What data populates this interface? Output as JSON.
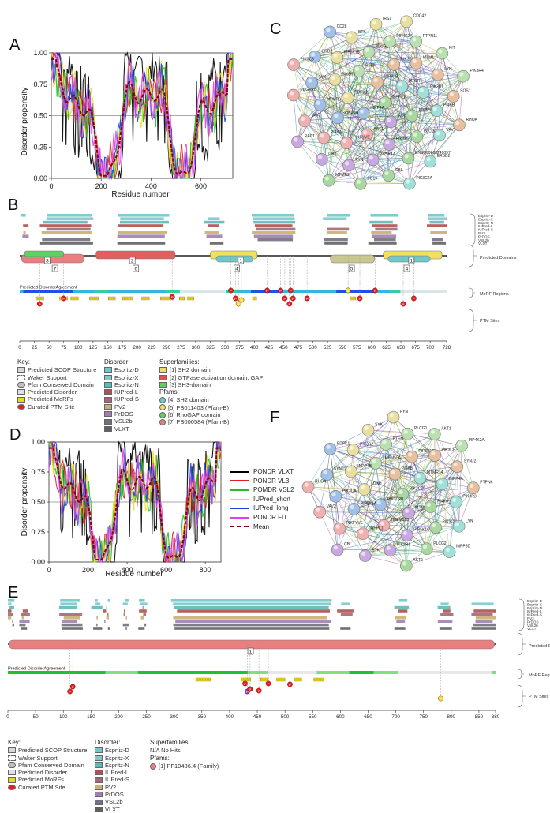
{
  "panels": {
    "a": "A",
    "b": "B",
    "c": "C",
    "d": "D",
    "e": "E",
    "f": "F"
  },
  "colors": {
    "vlxt": "#000000",
    "vl3": "#e02020",
    "vsl2": "#20c020",
    "iupred_short": "#e8e020",
    "iupred_long": "#2040e0",
    "fit": "#e040e0",
    "mean": "#8b0000",
    "sh2": "#66cccc",
    "gap": "#e05050",
    "sh3": "#60d060",
    "superfam": "#f0e060",
    "pfamB": "#c8c890"
  },
  "chart_a": {
    "ylabel": "Disorder propensity",
    "xlabel": "Residue number",
    "xticks": [
      "0",
      "200",
      "400",
      "600"
    ],
    "yticks": [
      "0.00",
      "0.25",
      "0.50",
      "0.75",
      "1.00"
    ],
    "xmax": 728
  },
  "chart_d": {
    "ylabel": "Disorder propensity",
    "xlabel": "Residue number",
    "xticks": [
      "0",
      "200",
      "400",
      "600",
      "800"
    ],
    "yticks": [
      "0.00",
      "0.25",
      "0.50",
      "0.75",
      "1.00"
    ],
    "xmax": 880
  },
  "legend_d": [
    {
      "label": "PONDR VLXT",
      "color": "#000000",
      "dash": false
    },
    {
      "label": "PONDR VL3",
      "color": "#e02020",
      "dash": false
    },
    {
      "label": "POMDR VSL2",
      "color": "#20c020",
      "dash": false
    },
    {
      "label": "IUPred_short",
      "color": "#e8e020",
      "dash": false
    },
    {
      "label": "IUPred_long",
      "color": "#2040e0",
      "dash": false
    },
    {
      "label": "PONDR FIT",
      "color": "#e040e0",
      "dash": false
    },
    {
      "label": "Mean",
      "color": "#8b0000",
      "dash": true
    }
  ],
  "track_b": {
    "predictors": [
      "Espritz-D",
      "Espritz-X",
      "Espritz-N",
      "IUPred-L",
      "IUPred-S",
      "PV2",
      "PrDOS",
      "VSL2b",
      "VLXT"
    ],
    "sections": {
      "domains": "Predicted Domains",
      "morf": "MoRF Regions",
      "ptm": "PTM Sites"
    },
    "agreement": "Predicted DisorderAgreement",
    "axis": [
      "0",
      "25",
      "50",
      "75",
      "100",
      "125",
      "150",
      "175",
      "200",
      "225",
      "250",
      "275",
      "300",
      "325",
      "350",
      "375",
      "400",
      "425",
      "450",
      "475",
      "500",
      "525",
      "550",
      "575",
      "600",
      "625",
      "650",
      "675",
      "700",
      "728"
    ],
    "domain_labels": [
      "3",
      "7",
      "2",
      "6",
      "4",
      "1",
      "5",
      "4",
      "1"
    ]
  },
  "track_e": {
    "predictors": [
      "Espritz-D",
      "Espritz-X",
      "Espritz-N",
      "IUPred-L",
      "IUPred-S",
      "PV2",
      "PrDOS",
      "VSL2b",
      "VLXT"
    ],
    "sections": {
      "domains": "Predicted Domains",
      "morf": "MoRF Regions",
      "ptm": "PTM Sites"
    },
    "agreement": "Predicted DisorderAgreement",
    "axis": [
      "0",
      "50",
      "100",
      "150",
      "200",
      "250",
      "300",
      "350",
      "400",
      "450",
      "500",
      "550",
      "600",
      "650",
      "700",
      "750",
      "800",
      "850",
      "880"
    ],
    "domain_labels": [
      "1"
    ]
  },
  "key_b": {
    "key_title": "Key:",
    "key_items": [
      "Predicted SCOP Structure",
      "Waker Support",
      "Pfam Conserved Domain",
      "Predicted Disorder",
      "Predicted MoRFs",
      "Curated PTM Site"
    ],
    "disorder_title": "Disorder:",
    "disorder_items": [
      "Esprtiz-D",
      "Espritz-X",
      "Espritz-N",
      "IUPred-L",
      "IUPred-S",
      "PV2",
      "PrDOS",
      "VSL2b",
      "VLXT"
    ],
    "superfam_title": "Superfamilies:",
    "superfam_items": [
      "[1] SH2 domain",
      "[2] GTPase activation domain, GAP",
      "[3] SH3-domain"
    ],
    "pfam_title": "Pfams:",
    "pfam_items": [
      "[4] SH2 domain",
      "[5] PB011403 (Pfam-B)",
      "[6] RhoGAP domain",
      "[7] PB000584 (Pfam-B)"
    ]
  },
  "key_e": {
    "key_title": "Key:",
    "key_items": [
      "Predicted SCOP Structure",
      "Waker Support",
      "Pfam Conserved Domain",
      "Predicted Disorder",
      "Predicted MoRFs",
      "Curated PTM Site"
    ],
    "disorder_title": "Disorder:",
    "disorder_items": [
      "Esprtiz-D",
      "Espritz-X",
      "Espritz-N",
      "IUPred-L",
      "IUPred-S",
      "PV2",
      "PrDOS",
      "VSL2b",
      "VLXT"
    ],
    "superfam_title": "Superfamilies:",
    "superfam_items": [
      "N/A No Hits"
    ],
    "pfam_title": "Pfams:",
    "pfam_items": [
      "[1] PF10486.4 (Family)"
    ]
  },
  "network_c": {
    "nodes": [
      "INPPL1",
      "INPP4A",
      "INPP4B",
      "INPP5D",
      "PDPK1",
      "MTOR",
      "AKT1",
      "PTEN",
      "PIK3CD",
      "PIK3CA",
      "PIK3CB",
      "PIK3R2",
      "PIK3R3",
      "PIK3R1",
      "PIKFYVE",
      "PLCG2",
      "PLCG1",
      "MTMR3",
      "MTM1",
      "PIP5K1A",
      "PIP5K1B",
      "PI4KB",
      "PI4KA",
      "PIP4K2A",
      "ENSG00000249097",
      "SYK",
      "LYN",
      "FYN",
      "BTK",
      "VAV1",
      "VAV2",
      "PTPN11",
      "CBL",
      "GRB2",
      "SOS1",
      "CRK",
      "IRS1",
      "ERBB2",
      "PDGFRB",
      "KIT",
      "CD19",
      "CD28",
      "RHOA",
      "RAC1",
      "CDC42",
      "PIK3C2A",
      "PIK3C3",
      "PIK3R4",
      "MTMR2"
    ]
  },
  "network_f": {
    "nodes": [
      "PIK3C3",
      "PIK3C2B",
      "PI4KB",
      "MTMR3",
      "MTM1",
      "MTMR14",
      "TMEM55B",
      "TMEM55A",
      "PI4KA",
      "PIP5K1A",
      "PIP5K1B",
      "PIP5K1C",
      "INPP4B",
      "INPP4A",
      "INPPL1",
      "PTEN",
      "PIK3CD",
      "PIK3CA",
      "PIK3CB",
      "PIK3R1",
      "PIK3R2",
      "PIK3R3",
      "PIKFYVE",
      "PLCG1",
      "PLCG2",
      "SYNJ1",
      "SYNJ2",
      "BTK",
      "SYK",
      "LYN",
      "VAV2",
      "AKT1",
      "AKT2",
      "PDPK1",
      "PTPN6",
      "CBL",
      "FYN",
      "INPP5D",
      "RHOA",
      "PIP4K2A"
    ]
  }
}
